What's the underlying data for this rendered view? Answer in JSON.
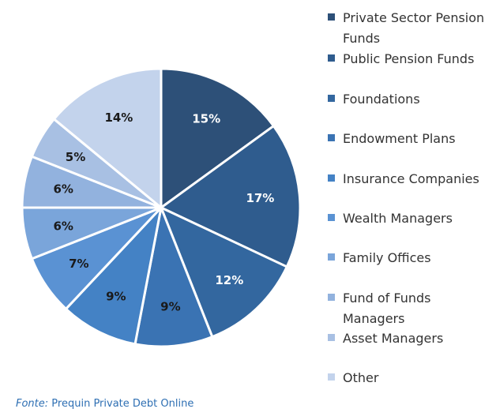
{
  "chart_data": {
    "type": "pie",
    "title": "",
    "legend_position": "right",
    "slices": [
      {
        "label": "Private Sector Pension Funds",
        "value": 15,
        "color": "#2d5078",
        "text_color": "#ffffff"
      },
      {
        "label": "Public Pension Funds",
        "value": 17,
        "color": "#2f5c8e",
        "text_color": "#ffffff"
      },
      {
        "label": "Foundations",
        "value": 12,
        "color": "#33679f",
        "text_color": "#ffffff"
      },
      {
        "label": "Endowment Plans",
        "value": 9,
        "color": "#3a73b3",
        "text_color": "#1a1a1a"
      },
      {
        "label": "Insurance Companies",
        "value": 9,
        "color": "#4482c5",
        "text_color": "#1a1a1a"
      },
      {
        "label": "Wealth Managers",
        "value": 7,
        "color": "#5a92d3",
        "text_color": "#1a1a1a"
      },
      {
        "label": "Family Offices",
        "value": 6,
        "color": "#7aa5da",
        "text_color": "#1a1a1a"
      },
      {
        "label": "Fund of Funds Managers",
        "value": 6,
        "color": "#92b2de",
        "text_color": "#1a1a1a"
      },
      {
        "label": "Asset Managers",
        "value": 5,
        "color": "#a8c0e3",
        "text_color": "#1a1a1a"
      },
      {
        "label": "Other",
        "value": 14,
        "color": "#c3d3ec",
        "text_color": "#1a1a1a"
      }
    ]
  },
  "source": {
    "prefix": "Fonte:",
    "text": "Prequin Private Debt Online"
  }
}
